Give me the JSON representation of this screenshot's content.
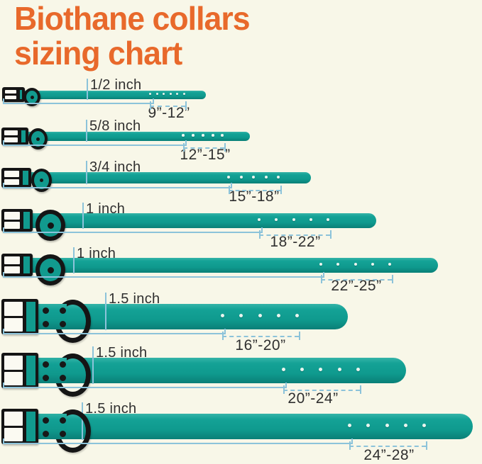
{
  "title": {
    "line1": "Biothane collars",
    "line2": "sizing chart"
  },
  "colors": {
    "background": "#f8f7e8",
    "collar_teal": "#0f9a8e",
    "title_orange": "#e8692b",
    "measure_blue": "#8cc3da",
    "text_dark": "#2f2f2f",
    "buckle_black": "#151515"
  },
  "collars": [
    {
      "width_label": "1/2 inch",
      "neck_range": "9”-12”",
      "holes": 6
    },
    {
      "width_label": "5/8 inch",
      "neck_range": "12”-15”",
      "holes": 5
    },
    {
      "width_label": "3/4 inch",
      "neck_range": "15”-18”",
      "holes": 5
    },
    {
      "width_label": "1 inch",
      "neck_range": "18”-22”",
      "holes": 5
    },
    {
      "width_label": "1 inch",
      "neck_range": "22”-25”",
      "holes": 5
    },
    {
      "width_label": "1.5 inch",
      "neck_range": "16”-20”",
      "holes": 5
    },
    {
      "width_label": "1.5 inch",
      "neck_range": "20”-24”",
      "holes": 5
    },
    {
      "width_label": "1.5 inch",
      "neck_range": "24”-28”",
      "holes": 5
    }
  ]
}
